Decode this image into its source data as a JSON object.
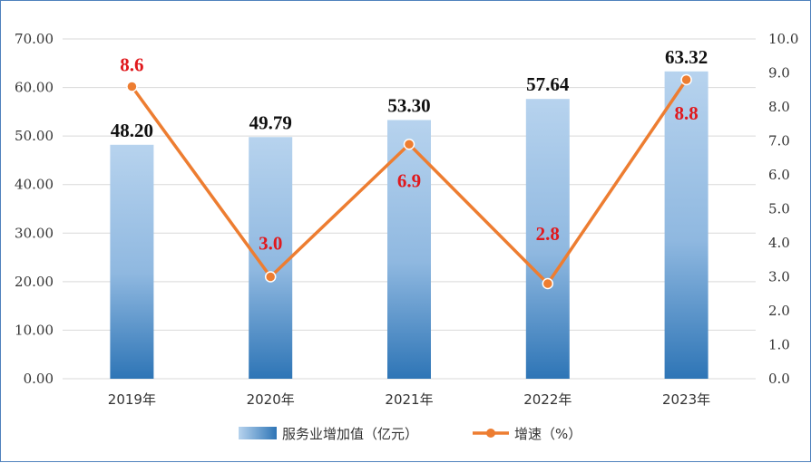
{
  "chart_data": {
    "type": "bar+line",
    "categories": [
      "2019年",
      "2020年",
      "2021年",
      "2022年",
      "2023年"
    ],
    "series": [
      {
        "name": "服务业增加值（亿元）",
        "type": "bar",
        "axis": "left",
        "values": [
          48.2,
          49.79,
          53.3,
          57.64,
          63.32
        ],
        "labels": [
          "48.20",
          "49.79",
          "53.30",
          "57.64",
          "63.32"
        ]
      },
      {
        "name": "增速（%）",
        "type": "line",
        "axis": "right",
        "values": [
          8.6,
          3.0,
          6.9,
          2.8,
          8.8
        ],
        "labels": [
          "8.6",
          "3.0",
          "6.9",
          "2.8",
          "8.8"
        ]
      }
    ],
    "y_left": {
      "range": [
        0,
        70
      ],
      "ticks": [
        "0.00",
        "10.00",
        "20.00",
        "30.00",
        "40.00",
        "50.00",
        "60.00",
        "70.00"
      ]
    },
    "y_right": {
      "range": [
        0,
        10
      ],
      "ticks": [
        "0.0",
        "1.0",
        "2.0",
        "3.0",
        "4.0",
        "5.0",
        "6.0",
        "7.0",
        "8.0",
        "9.0",
        "10.0"
      ]
    },
    "grid": true,
    "legend": "bottom",
    "colors": {
      "bar_top": "#b7d3ee",
      "bar_bottom": "#2e75b6",
      "line": "#ed7d31",
      "line_label": "#e0191d",
      "grid": "#d9d9d9"
    }
  }
}
